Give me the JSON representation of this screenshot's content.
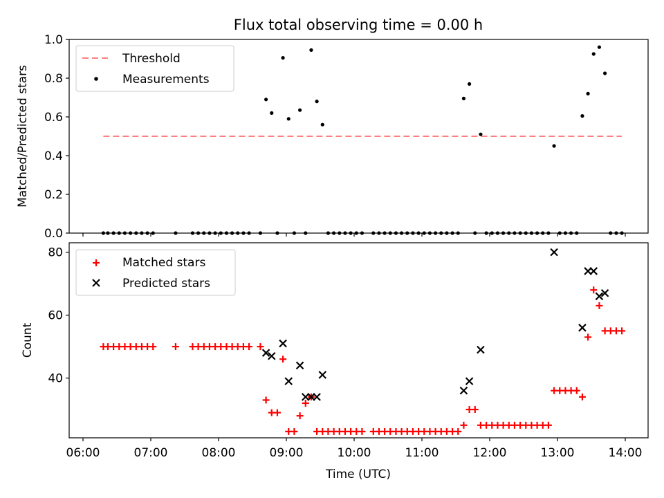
{
  "chart_data": [
    {
      "type": "scatter",
      "title": "Flux total observing time = 0.00 h",
      "xlabel": "",
      "ylabel": "Matched/Predicted stars",
      "xlim": [
        "06:00",
        "14:00"
      ],
      "ylim": [
        0,
        1.0
      ],
      "y_ticks": [
        0.0,
        0.2,
        0.4,
        0.6,
        0.8,
        1.0
      ],
      "y_tick_labels": [
        "0.0",
        "0.2",
        "0.4",
        "0.6",
        "0.8",
        "1.0"
      ],
      "legend": {
        "position": "top-left",
        "entries": [
          "Threshold",
          "Measurements"
        ]
      },
      "grid": false,
      "threshold": {
        "name": "Threshold",
        "value": 0.5,
        "x_start": "06:18",
        "x_end": "13:57",
        "color": "#ff8080"
      },
      "series": [
        {
          "name": "Measurements",
          "color": "#000000",
          "points": [
            [
              "06:18",
              0
            ],
            [
              "06:22",
              0
            ],
            [
              "06:27",
              0
            ],
            [
              "06:32",
              0
            ],
            [
              "06:37",
              0
            ],
            [
              "06:42",
              0
            ],
            [
              "06:47",
              0
            ],
            [
              "06:52",
              0
            ],
            [
              "06:57",
              0
            ],
            [
              "07:02",
              0
            ],
            [
              "07:22",
              0
            ],
            [
              "07:37",
              0
            ],
            [
              "07:42",
              0
            ],
            [
              "07:47",
              0
            ],
            [
              "07:52",
              0
            ],
            [
              "07:57",
              0
            ],
            [
              "08:02",
              0
            ],
            [
              "08:07",
              0
            ],
            [
              "08:12",
              0
            ],
            [
              "08:17",
              0
            ],
            [
              "08:22",
              0
            ],
            [
              "08:27",
              0
            ],
            [
              "08:37",
              0
            ],
            [
              "08:42",
              0.69
            ],
            [
              "08:47",
              0.62
            ],
            [
              "08:52",
              0
            ],
            [
              "08:57",
              0.905
            ],
            [
              "09:02",
              0.59
            ],
            [
              "09:07",
              0
            ],
            [
              "09:12",
              0.635
            ],
            [
              "09:17",
              0
            ],
            [
              "09:22",
              0.945
            ],
            [
              "09:27",
              0.68
            ],
            [
              "09:32",
              0.56
            ],
            [
              "09:37",
              0
            ],
            [
              "09:42",
              0
            ],
            [
              "09:47",
              0
            ],
            [
              "09:52",
              0
            ],
            [
              "09:57",
              0
            ],
            [
              "10:02",
              0
            ],
            [
              "10:07",
              0
            ],
            [
              "10:17",
              0
            ],
            [
              "10:22",
              0
            ],
            [
              "10:27",
              0
            ],
            [
              "10:32",
              0
            ],
            [
              "10:37",
              0
            ],
            [
              "10:42",
              0
            ],
            [
              "10:47",
              0
            ],
            [
              "10:52",
              0
            ],
            [
              "10:57",
              0
            ],
            [
              "11:02",
              0
            ],
            [
              "11:07",
              0
            ],
            [
              "11:12",
              0
            ],
            [
              "11:17",
              0
            ],
            [
              "11:22",
              0
            ],
            [
              "11:27",
              0
            ],
            [
              "11:32",
              0
            ],
            [
              "11:37",
              0.695
            ],
            [
              "11:42",
              0.77
            ],
            [
              "11:47",
              0
            ],
            [
              "11:52",
              0.51
            ],
            [
              "11:57",
              0
            ],
            [
              "12:02",
              0
            ],
            [
              "12:07",
              0
            ],
            [
              "12:12",
              0
            ],
            [
              "12:17",
              0
            ],
            [
              "12:22",
              0
            ],
            [
              "12:27",
              0
            ],
            [
              "12:32",
              0
            ],
            [
              "12:37",
              0
            ],
            [
              "12:42",
              0
            ],
            [
              "12:47",
              0
            ],
            [
              "12:52",
              0
            ],
            [
              "12:57",
              0.45
            ],
            [
              "13:02",
              0
            ],
            [
              "13:07",
              0
            ],
            [
              "13:12",
              0
            ],
            [
              "13:17",
              0
            ],
            [
              "13:22",
              0.605
            ],
            [
              "13:27",
              0.72
            ],
            [
              "13:32",
              0.925
            ],
            [
              "13:37",
              0.96
            ],
            [
              "13:42",
              0.825
            ],
            [
              "13:47",
              0
            ],
            [
              "13:52",
              0
            ],
            [
              "13:57",
              0
            ]
          ]
        }
      ]
    },
    {
      "type": "scatter",
      "title": "",
      "xlabel": "Time (UTC)",
      "ylabel": "Count",
      "xlim": [
        "06:00",
        "14:00"
      ],
      "x_ticks": [
        "06:00",
        "07:00",
        "08:00",
        "09:00",
        "10:00",
        "11:00",
        "12:00",
        "13:00",
        "14:00"
      ],
      "ylim": [
        21,
        83
      ],
      "y_ticks": [
        40,
        60,
        80
      ],
      "y_tick_labels": [
        "40",
        "60",
        "80"
      ],
      "legend": {
        "position": "top-left",
        "entries": [
          "Matched stars",
          "Predicted stars"
        ]
      },
      "grid": false,
      "series": [
        {
          "name": "Matched stars",
          "color": "#ff0000",
          "marker": "plus",
          "points": [
            [
              "06:18",
              50
            ],
            [
              "06:22",
              50
            ],
            [
              "06:27",
              50
            ],
            [
              "06:32",
              50
            ],
            [
              "06:37",
              50
            ],
            [
              "06:42",
              50
            ],
            [
              "06:47",
              50
            ],
            [
              "06:52",
              50
            ],
            [
              "06:57",
              50
            ],
            [
              "07:02",
              50
            ],
            [
              "07:22",
              50
            ],
            [
              "07:37",
              50
            ],
            [
              "07:42",
              50
            ],
            [
              "07:47",
              50
            ],
            [
              "07:52",
              50
            ],
            [
              "07:57",
              50
            ],
            [
              "08:02",
              50
            ],
            [
              "08:07",
              50
            ],
            [
              "08:12",
              50
            ],
            [
              "08:17",
              50
            ],
            [
              "08:22",
              50
            ],
            [
              "08:27",
              50
            ],
            [
              "08:37",
              50
            ],
            [
              "08:42",
              33
            ],
            [
              "08:47",
              29
            ],
            [
              "08:52",
              29
            ],
            [
              "08:57",
              46
            ],
            [
              "09:02",
              23
            ],
            [
              "09:07",
              23
            ],
            [
              "09:12",
              28
            ],
            [
              "09:17",
              32
            ],
            [
              "09:22",
              34
            ],
            [
              "09:27",
              23
            ],
            [
              "09:32",
              23
            ],
            [
              "09:37",
              23
            ],
            [
              "09:42",
              23
            ],
            [
              "09:47",
              23
            ],
            [
              "09:52",
              23
            ],
            [
              "09:57",
              23
            ],
            [
              "10:02",
              23
            ],
            [
              "10:07",
              23
            ],
            [
              "10:17",
              23
            ],
            [
              "10:22",
              23
            ],
            [
              "10:27",
              23
            ],
            [
              "10:32",
              23
            ],
            [
              "10:37",
              23
            ],
            [
              "10:42",
              23
            ],
            [
              "10:47",
              23
            ],
            [
              "10:52",
              23
            ],
            [
              "10:57",
              23
            ],
            [
              "11:02",
              23
            ],
            [
              "11:07",
              23
            ],
            [
              "11:12",
              23
            ],
            [
              "11:17",
              23
            ],
            [
              "11:22",
              23
            ],
            [
              "11:27",
              23
            ],
            [
              "11:32",
              23
            ],
            [
              "11:37",
              25
            ],
            [
              "11:42",
              30
            ],
            [
              "11:47",
              30
            ],
            [
              "11:52",
              25
            ],
            [
              "11:57",
              25
            ],
            [
              "12:02",
              25
            ],
            [
              "12:07",
              25
            ],
            [
              "12:12",
              25
            ],
            [
              "12:17",
              25
            ],
            [
              "12:22",
              25
            ],
            [
              "12:27",
              25
            ],
            [
              "12:32",
              25
            ],
            [
              "12:37",
              25
            ],
            [
              "12:42",
              25
            ],
            [
              "12:47",
              25
            ],
            [
              "12:52",
              25
            ],
            [
              "12:57",
              36
            ],
            [
              "13:02",
              36
            ],
            [
              "13:07",
              36
            ],
            [
              "13:12",
              36
            ],
            [
              "13:17",
              36
            ],
            [
              "13:22",
              34
            ],
            [
              "13:27",
              53
            ],
            [
              "13:32",
              68
            ],
            [
              "13:37",
              63
            ],
            [
              "13:42",
              55
            ],
            [
              "13:47",
              55
            ],
            [
              "13:52",
              55
            ],
            [
              "13:57",
              55
            ]
          ]
        },
        {
          "name": "Predicted stars",
          "color": "#000000",
          "marker": "x",
          "points": [
            [
              "08:42",
              48
            ],
            [
              "08:47",
              47
            ],
            [
              "08:57",
              51
            ],
            [
              "09:02",
              39
            ],
            [
              "09:12",
              44
            ],
            [
              "09:17",
              34
            ],
            [
              "09:22",
              34
            ],
            [
              "09:27",
              34
            ],
            [
              "09:32",
              41
            ],
            [
              "11:37",
              36
            ],
            [
              "11:42",
              39
            ],
            [
              "11:52",
              49
            ],
            [
              "12:57",
              80
            ],
            [
              "13:22",
              56
            ],
            [
              "13:27",
              74
            ],
            [
              "13:32",
              74
            ],
            [
              "13:37",
              66
            ],
            [
              "13:42",
              67
            ]
          ]
        }
      ]
    }
  ]
}
